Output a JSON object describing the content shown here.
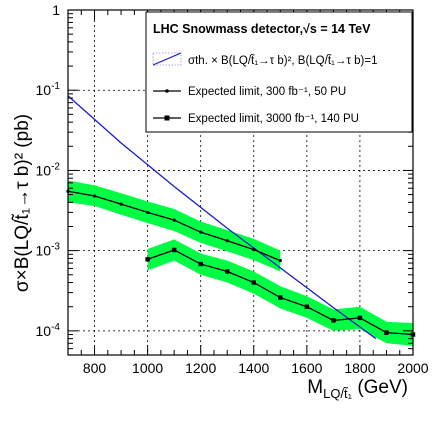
{
  "chart_data": {
    "type": "line",
    "title": "LHC Snowmass detector,√s = 14 TeV",
    "xlabel": "M_LQ/t̃₁ (GeV)",
    "ylabel": "σ×B(LQ/t̃₁→τ b)² (pb)",
    "xlim": [
      700,
      2000
    ],
    "ylim": [
      5e-05,
      1
    ],
    "yscale": "log",
    "grid": true,
    "legend_position": "top-right",
    "x_ticks": [
      "800",
      "1000",
      "1200",
      "1400",
      "1600",
      "1800",
      "2000"
    ],
    "y_ticks": [
      "10⁻⁴",
      "10⁻³",
      "10⁻²",
      "10⁻¹",
      "1"
    ],
    "colors": {
      "band": "#00ff44",
      "theory": "#1a1ac8",
      "limit": "#000000"
    },
    "series": [
      {
        "name": "σth. × B(LQ/t̃₁→τ b)², B(LQ/t̃₁→τ b)=1",
        "style": "theory",
        "x": [
          700,
          900,
          1100,
          1300,
          1500,
          1700,
          1860
        ],
        "y": [
          0.085,
          0.022,
          0.0063,
          0.0019,
          0.00061,
          0.000195,
          8e-05
        ]
      },
      {
        "name": "Expected limit, 300 fb⁻¹, 50 PU",
        "style": "limit300",
        "x": [
          700,
          800,
          900,
          1000,
          1100,
          1200,
          1300,
          1400,
          1500
        ],
        "y": [
          0.0055,
          0.0048,
          0.0038,
          0.003,
          0.0024,
          0.0017,
          0.00133,
          0.00103,
          0.00075
        ],
        "band_lo": [
          0.004,
          0.0036,
          0.0028,
          0.0022,
          0.00175,
          0.00125,
          0.00098,
          0.00076,
          0.00055
        ],
        "band_hi": [
          0.0075,
          0.0065,
          0.0052,
          0.0041,
          0.0033,
          0.0023,
          0.0018,
          0.0014,
          0.001
        ]
      },
      {
        "name": "Expected limit, 3000 fb⁻¹, 140 PU",
        "style": "limit3000",
        "x": [
          1000,
          1100,
          1200,
          1300,
          1400,
          1500,
          1600,
          1700,
          1800,
          1900,
          2000
        ],
        "y": [
          0.00078,
          0.00102,
          0.00068,
          0.00055,
          0.0004,
          0.00026,
          0.0002,
          0.000135,
          0.000145,
          9.5e-05,
          9e-05
        ],
        "band_lo": [
          0.00057,
          0.00075,
          0.0005,
          0.0004,
          0.00029,
          0.00019,
          0.000145,
          0.0001,
          0.000105,
          7e-05,
          6.5e-05
        ],
        "band_hi": [
          0.00105,
          0.00138,
          0.00092,
          0.00075,
          0.00055,
          0.00036,
          0.00027,
          0.000185,
          0.0002,
          0.00013,
          0.000125
        ]
      }
    ]
  }
}
